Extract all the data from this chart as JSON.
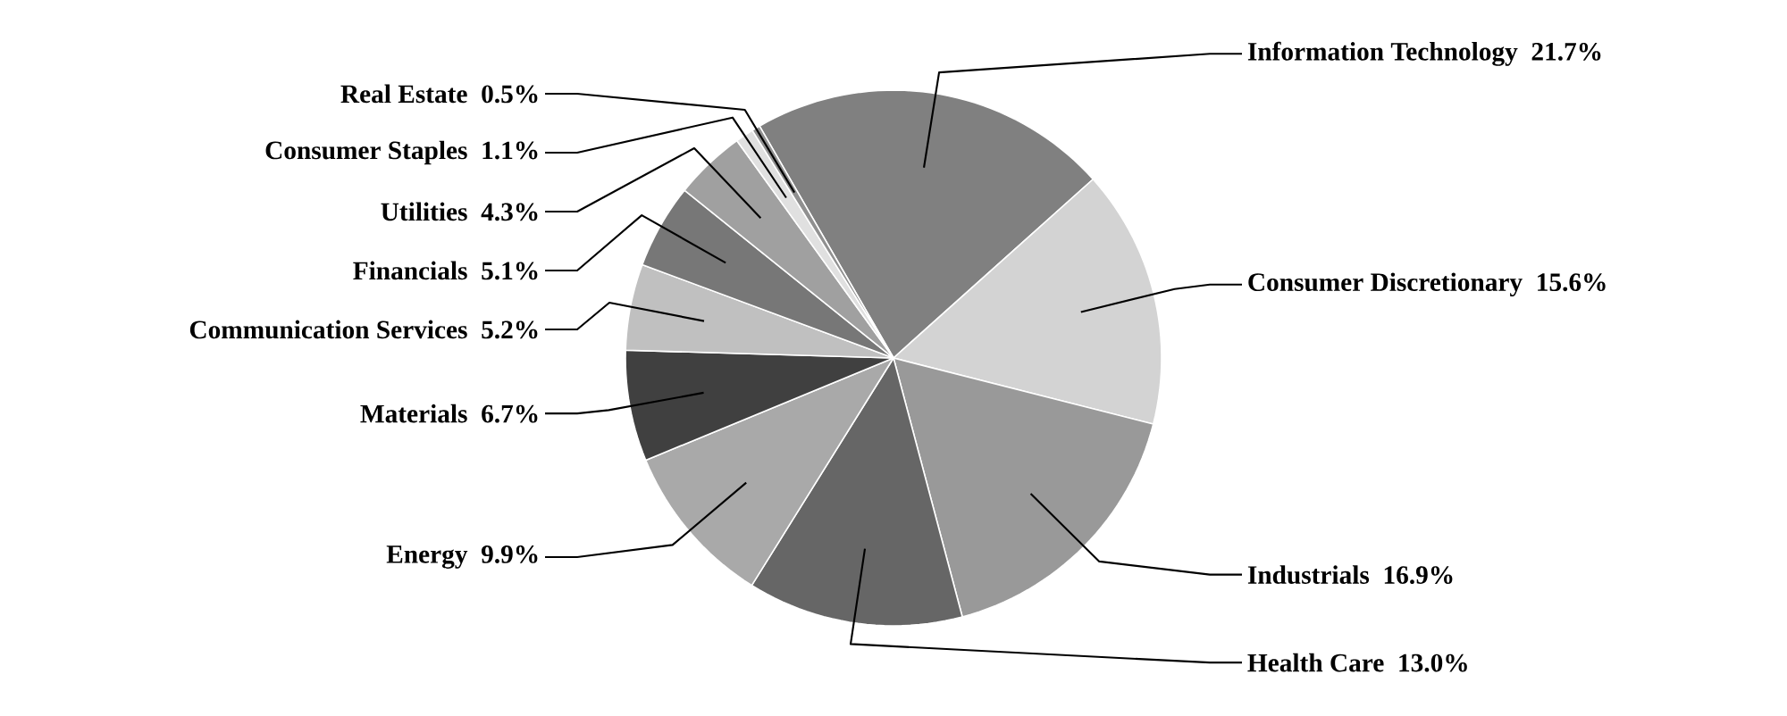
{
  "chart_data": {
    "type": "pie",
    "categories": [
      "Information Technology",
      "Consumer Discretionary",
      "Industrials",
      "Health Care",
      "Energy",
      "Materials",
      "Communication Services",
      "Financials",
      "Utilities",
      "Consumer Staples",
      "Real Estate"
    ],
    "values": [
      21.7,
      15.6,
      16.9,
      13.0,
      9.9,
      6.7,
      5.2,
      5.1,
      4.3,
      1.1,
      0.5
    ],
    "value_labels": [
      "21.7%",
      "15.6%",
      "16.9%",
      "13.0%",
      "9.9%",
      "6.7%",
      "5.2%",
      "5.1%",
      "4.3%",
      "1.1%",
      "0.5%"
    ],
    "colors": [
      "#808080",
      "#d3d3d3",
      "#999999",
      "#666666",
      "#a9a9a9",
      "#404040",
      "#c0c0c0",
      "#777777",
      "#a0a0a0",
      "#e0e0e0",
      "#909090"
    ]
  }
}
